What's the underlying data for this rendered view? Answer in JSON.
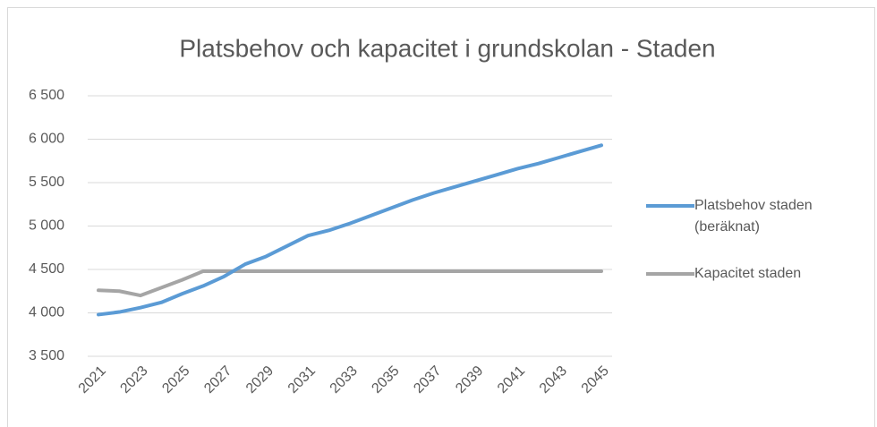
{
  "chart_data": {
    "type": "line",
    "title": "Platsbehov och kapacitet i grundskolan - Staden",
    "categories": [
      "2021",
      null,
      "2023",
      null,
      "2025",
      null,
      "2027",
      null,
      "2029",
      null,
      "2031",
      null,
      "2033",
      null,
      "2035",
      null,
      "2037",
      null,
      "2039",
      null,
      "2041",
      null,
      "2043",
      null,
      "2045"
    ],
    "series": [
      {
        "name": "Platsbehov staden (beräknat)",
        "color": "#5b9bd5",
        "values": [
          3980,
          4010,
          4060,
          4120,
          4220,
          4310,
          4420,
          4560,
          4650,
          4770,
          4890,
          4950,
          5030,
          5120,
          5210,
          5300,
          5380,
          5450,
          5520,
          5590,
          5660,
          5720,
          5790,
          5860,
          5930
        ]
      },
      {
        "name": "Kapacitet staden",
        "color": "#a5a5a5",
        "values": [
          4260,
          4250,
          4200,
          4290,
          4380,
          4480,
          4480,
          4480,
          4480,
          4480,
          4480,
          4480,
          4480,
          4480,
          4480,
          4480,
          4480,
          4480,
          4480,
          4480,
          4480,
          4480,
          4480,
          4480,
          4480
        ]
      }
    ],
    "ylim": [
      3500,
      6500
    ],
    "yticks": [
      {
        "value": 3500,
        "label": "3 500"
      },
      {
        "value": 4000,
        "label": "4 000"
      },
      {
        "value": 4500,
        "label": "4 500"
      },
      {
        "value": 5000,
        "label": "5 000"
      },
      {
        "value": 5500,
        "label": "5 500"
      },
      {
        "value": 6000,
        "label": "6 000"
      },
      {
        "value": 6500,
        "label": "6 500"
      }
    ],
    "grid": true,
    "legend": "right"
  }
}
